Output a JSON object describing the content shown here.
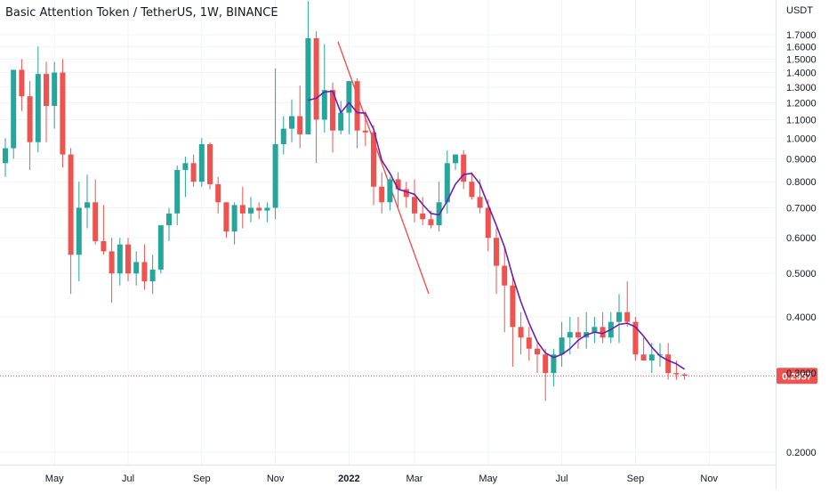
{
  "chart_data": {
    "type": "candlestick",
    "title": "Basic Attention Token / TetherUS, 1W, BINANCE",
    "currency": "USDT",
    "y_scale": "log",
    "ylim": [
      0.18,
      2.0
    ],
    "y_ticks": [
      "1.7000",
      "1.6000",
      "1.5000",
      "1.4000",
      "1.3000",
      "1.2000",
      "1.1000",
      "1.0000",
      "0.9000",
      "0.8000",
      "0.7000",
      "0.6000",
      "0.5000",
      "0.4000",
      "0.3000",
      "0.2000"
    ],
    "x_ticks": [
      {
        "label": "May",
        "week": 6
      },
      {
        "label": "Jul",
        "week": 15
      },
      {
        "label": "Sep",
        "week": 24
      },
      {
        "label": "Nov",
        "week": 33
      },
      {
        "label": "2022",
        "week": 42
      },
      {
        "label": "Mar",
        "week": 50
      },
      {
        "label": "May",
        "week": 59
      },
      {
        "label": "Jul",
        "week": 68
      },
      {
        "label": "Sep",
        "week": 77
      },
      {
        "label": "Nov",
        "week": 86
      }
    ],
    "last_price": "0.2957",
    "last_price_value": 0.2957,
    "up_color": "#26a69a",
    "down_color": "#ef5350",
    "ma_color": "#6a1fb0",
    "trendline_color": "#ef5350",
    "candles": [
      [
        0.88,
        1.0,
        0.82,
        0.95
      ],
      [
        0.95,
        1.42,
        0.9,
        1.42
      ],
      [
        1.42,
        1.5,
        1.15,
        1.24
      ],
      [
        1.24,
        1.34,
        0.85,
        0.98
      ],
      [
        0.98,
        1.6,
        0.93,
        1.39
      ],
      [
        1.39,
        1.48,
        0.98,
        1.18
      ],
      [
        1.18,
        1.48,
        1.05,
        1.4
      ],
      [
        1.4,
        1.5,
        0.86,
        0.92
      ],
      [
        0.92,
        0.95,
        0.45,
        0.55
      ],
      [
        0.55,
        0.8,
        0.48,
        0.7
      ],
      [
        0.7,
        0.83,
        0.63,
        0.72
      ],
      [
        0.72,
        0.81,
        0.58,
        0.59
      ],
      [
        0.59,
        0.71,
        0.55,
        0.56
      ],
      [
        0.56,
        0.6,
        0.43,
        0.5
      ],
      [
        0.5,
        0.6,
        0.47,
        0.58
      ],
      [
        0.58,
        0.6,
        0.48,
        0.5
      ],
      [
        0.5,
        0.56,
        0.47,
        0.53
      ],
      [
        0.53,
        0.58,
        0.46,
        0.48
      ],
      [
        0.48,
        0.55,
        0.45,
        0.51
      ],
      [
        0.51,
        0.63,
        0.5,
        0.64
      ],
      [
        0.64,
        0.7,
        0.59,
        0.68
      ],
      [
        0.68,
        0.87,
        0.64,
        0.85
      ],
      [
        0.85,
        0.91,
        0.74,
        0.88
      ],
      [
        0.88,
        0.92,
        0.78,
        0.8
      ],
      [
        0.8,
        1.0,
        0.78,
        0.97
      ],
      [
        0.97,
        0.98,
        0.77,
        0.79
      ],
      [
        0.79,
        0.82,
        0.68,
        0.72
      ],
      [
        0.72,
        0.72,
        0.6,
        0.62
      ],
      [
        0.62,
        0.72,
        0.58,
        0.71
      ],
      [
        0.71,
        0.78,
        0.63,
        0.68
      ],
      [
        0.68,
        0.74,
        0.65,
        0.7
      ],
      [
        0.7,
        0.72,
        0.66,
        0.69
      ],
      [
        0.69,
        0.72,
        0.65,
        0.7
      ],
      [
        0.7,
        1.43,
        0.66,
        0.97
      ],
      [
        0.97,
        1.12,
        0.92,
        1.05
      ],
      [
        1.05,
        1.22,
        0.98,
        1.12
      ],
      [
        1.12,
        1.31,
        0.95,
        1.02
      ],
      [
        1.02,
        2.02,
        1.03,
        1.67
      ],
      [
        1.67,
        1.73,
        0.88,
        1.1
      ],
      [
        1.1,
        1.62,
        1.03,
        1.28
      ],
      [
        1.28,
        1.33,
        0.93,
        1.04
      ],
      [
        1.04,
        1.21,
        1.02,
        1.14
      ],
      [
        1.14,
        1.34,
        1.02,
        1.34
      ],
      [
        1.34,
        1.36,
        0.95,
        1.04
      ],
      [
        1.04,
        1.15,
        0.96,
        1.03
      ],
      [
        1.03,
        1.07,
        0.71,
        0.78
      ],
      [
        0.78,
        0.84,
        0.68,
        0.72
      ],
      [
        0.72,
        0.82,
        0.69,
        0.81
      ],
      [
        0.81,
        0.84,
        0.7,
        0.77
      ],
      [
        0.77,
        0.8,
        0.7,
        0.74
      ],
      [
        0.74,
        0.81,
        0.65,
        0.68
      ],
      [
        0.68,
        0.74,
        0.64,
        0.66
      ],
      [
        0.66,
        0.69,
        0.63,
        0.64
      ],
      [
        0.64,
        0.8,
        0.62,
        0.72
      ],
      [
        0.72,
        0.94,
        0.68,
        0.88
      ],
      [
        0.88,
        0.92,
        0.85,
        0.92
      ],
      [
        0.92,
        0.94,
        0.77,
        0.8
      ],
      [
        0.8,
        0.84,
        0.73,
        0.74
      ],
      [
        0.74,
        0.81,
        0.68,
        0.7
      ],
      [
        0.7,
        0.73,
        0.56,
        0.6
      ],
      [
        0.6,
        0.63,
        0.45,
        0.52
      ],
      [
        0.52,
        0.57,
        0.37,
        0.47
      ],
      [
        0.47,
        0.49,
        0.31,
        0.38
      ],
      [
        0.38,
        0.41,
        0.33,
        0.36
      ],
      [
        0.36,
        0.38,
        0.32,
        0.34
      ],
      [
        0.34,
        0.35,
        0.3,
        0.33
      ],
      [
        0.33,
        0.34,
        0.26,
        0.3
      ],
      [
        0.3,
        0.34,
        0.28,
        0.33
      ],
      [
        0.33,
        0.39,
        0.31,
        0.36
      ],
      [
        0.36,
        0.4,
        0.33,
        0.37
      ],
      [
        0.37,
        0.4,
        0.34,
        0.36
      ],
      [
        0.36,
        0.41,
        0.34,
        0.37
      ],
      [
        0.37,
        0.4,
        0.35,
        0.38
      ],
      [
        0.38,
        0.41,
        0.35,
        0.36
      ],
      [
        0.36,
        0.41,
        0.35,
        0.39
      ],
      [
        0.39,
        0.45,
        0.35,
        0.41
      ],
      [
        0.41,
        0.48,
        0.38,
        0.39
      ],
      [
        0.39,
        0.4,
        0.32,
        0.33
      ],
      [
        0.33,
        0.36,
        0.32,
        0.32
      ],
      [
        0.32,
        0.35,
        0.3,
        0.33
      ],
      [
        0.33,
        0.35,
        0.31,
        0.33
      ],
      [
        0.33,
        0.35,
        0.29,
        0.3
      ],
      [
        0.3,
        0.32,
        0.29,
        0.298
      ],
      [
        0.298,
        0.3,
        0.29,
        0.296
      ]
    ]
  }
}
